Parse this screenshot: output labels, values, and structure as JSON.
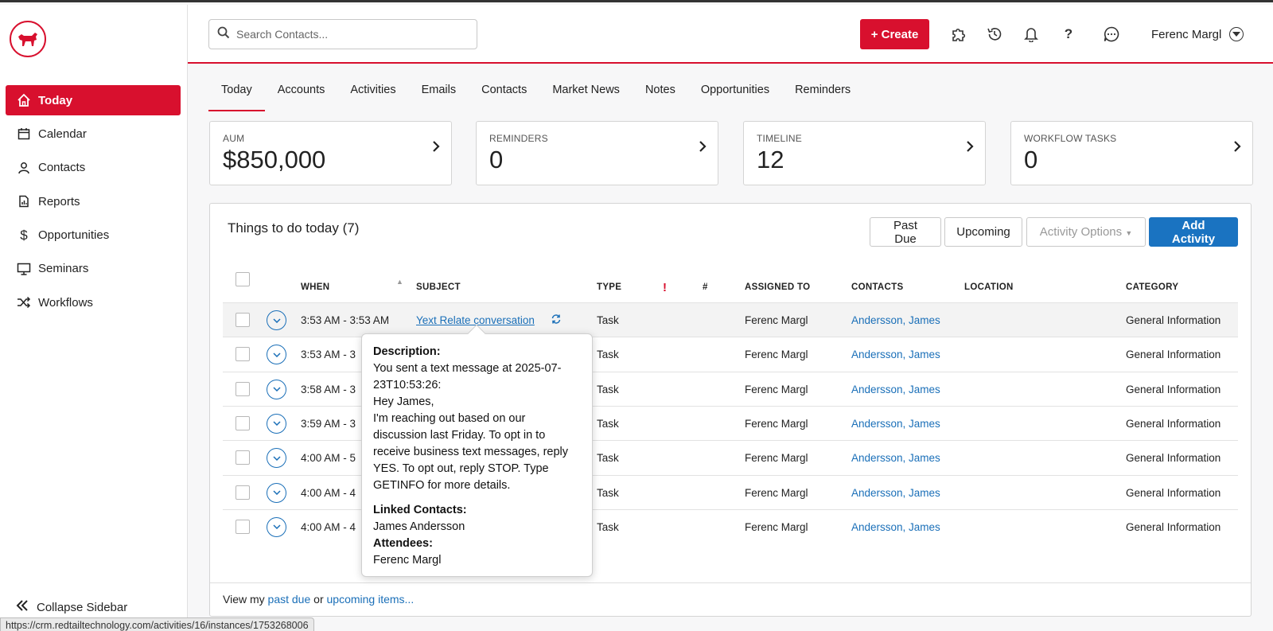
{
  "sidebar": {
    "items": [
      {
        "label": "Today",
        "icon": "home-icon"
      },
      {
        "label": "Calendar",
        "icon": "calendar-icon"
      },
      {
        "label": "Contacts",
        "icon": "user-icon"
      },
      {
        "label": "Reports",
        "icon": "report-icon"
      },
      {
        "label": "Opportunities",
        "icon": "dollar-icon"
      },
      {
        "label": "Seminars",
        "icon": "presentation-icon"
      },
      {
        "label": "Workflows",
        "icon": "shuffle-icon"
      }
    ],
    "collapse_label": "Collapse Sidebar"
  },
  "header": {
    "search_placeholder": "Search Contacts...",
    "create_label": "+ Create",
    "user_name": "Ferenc Margl"
  },
  "tabs": [
    "Today",
    "Accounts",
    "Activities",
    "Emails",
    "Contacts",
    "Market News",
    "Notes",
    "Opportunities",
    "Reminders"
  ],
  "cards": [
    {
      "label": "AUM",
      "value": "$850,000"
    },
    {
      "label": "REMINDERS",
      "value": "0"
    },
    {
      "label": "TIMELINE",
      "value": "12"
    },
    {
      "label": "WORKFLOW TASKS",
      "value": "0"
    }
  ],
  "panel": {
    "title": "Things to do today (7)",
    "past_due": "Past Due",
    "upcoming": "Upcoming",
    "activity_options": "Activity Options",
    "add_activity": "Add Activity",
    "footer_prefix": "View my",
    "footer_past_due": "past due",
    "footer_or": "or",
    "footer_upcoming": "upcoming items..."
  },
  "table": {
    "columns": {
      "when": "WHEN",
      "subject": "SUBJECT",
      "type": "TYPE",
      "priority": "!",
      "number": "#",
      "assigned": "ASSIGNED TO",
      "contacts": "CONTACTS",
      "location": "LOCATION",
      "category": "CATEGORY"
    },
    "rows": [
      {
        "when": "3:53 AM - 3:53 AM",
        "subject": "Yext Relate conversation",
        "type": "Task",
        "assigned": "Ferenc Margl",
        "contacts": "Andersson, James",
        "category": "General Information"
      },
      {
        "when": "3:53 AM - 3",
        "subject": "",
        "type": "Task",
        "assigned": "Ferenc Margl",
        "contacts": "Andersson, James",
        "category": "General Information"
      },
      {
        "when": "3:58 AM - 3",
        "subject": "",
        "type": "Task",
        "assigned": "Ferenc Margl",
        "contacts": "Andersson, James",
        "category": "General Information"
      },
      {
        "when": "3:59 AM - 3",
        "subject": "",
        "type": "Task",
        "assigned": "Ferenc Margl",
        "contacts": "Andersson, James",
        "category": "General Information"
      },
      {
        "when": "4:00 AM - 5",
        "subject": "",
        "type": "Task",
        "assigned": "Ferenc Margl",
        "contacts": "Andersson, James",
        "category": "General Information"
      },
      {
        "when": "4:00 AM - 4",
        "subject": "",
        "type": "Task",
        "assigned": "Ferenc Margl",
        "contacts": "Andersson, James",
        "category": "General Information"
      },
      {
        "when": "4:00 AM - 4",
        "subject": "",
        "type": "Task",
        "assigned": "Ferenc Margl",
        "contacts": "Andersson, James",
        "category": "General Information"
      }
    ]
  },
  "tooltip": {
    "desc_label": "Description:",
    "desc_text": "You sent a text message at 2025-07-23T10:53:26:",
    "greeting": "Hey James,",
    "body": "I'm reaching out based on our discussion last Friday. To opt in to receive business text messages, reply YES. To opt out, reply STOP. Type GETINFO for more details.",
    "linked_label": "Linked Contacts:",
    "linked_value": "James Andersson",
    "attendees_label": "Attendees:",
    "attendees_value": "Ferenc Margl"
  },
  "status_url": "https://crm.redtailtechnology.com/activities/16/instances/1753268006",
  "colors": {
    "brand_red": "#d8102e",
    "link_blue": "#1a6fb8",
    "primary_blue": "#1a73c1"
  }
}
